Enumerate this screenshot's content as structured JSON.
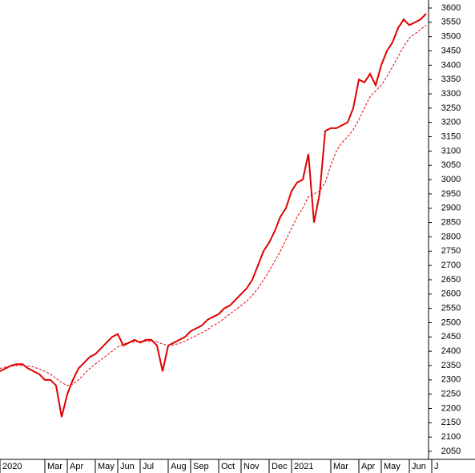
{
  "chart_data": {
    "type": "line",
    "categories": [
      "2020",
      null,
      null,
      null,
      null,
      null,
      null,
      null,
      "Mar",
      null,
      null,
      null,
      "Apr",
      null,
      null,
      null,
      null,
      "May",
      null,
      null,
      null,
      "Jun",
      null,
      null,
      null,
      "Jul",
      null,
      null,
      null,
      null,
      "Aug",
      null,
      null,
      null,
      "Sep",
      null,
      null,
      null,
      null,
      "Oct",
      null,
      null,
      null,
      "Nov",
      null,
      null,
      null,
      null,
      "Dec",
      null,
      null,
      null,
      "2021",
      null,
      null,
      null,
      null,
      null,
      null,
      "Mar",
      null,
      null,
      null,
      null,
      "Apr",
      null,
      null,
      null,
      "May",
      null,
      null,
      null,
      null,
      "Jun",
      null,
      null,
      null,
      "J"
    ],
    "series": [
      {
        "color": "#e00000",
        "style": "solid",
        "values": [
          2330,
          2340,
          2350,
          2355,
          2355,
          2340,
          2330,
          2320,
          2300,
          2300,
          2280,
          2170,
          2250,
          2300,
          2340,
          2360,
          2380,
          2390,
          2410,
          2430,
          2450,
          2460,
          2420,
          2430,
          2440,
          2430,
          2440,
          2440,
          2420,
          2330,
          2420,
          2430,
          2440,
          2450,
          2470,
          2480,
          2490,
          2510,
          2520,
          2530,
          2550,
          2560,
          2580,
          2600,
          2620,
          2650,
          2700,
          2750,
          2780,
          2820,
          2870,
          2900,
          2960,
          2990,
          3000,
          3090,
          2850,
          2950,
          3170,
          3180,
          3180,
          3190,
          3200,
          3250,
          3350,
          3340,
          3370,
          3330,
          3400,
          3450,
          3480,
          3530,
          3560,
          3540,
          3550,
          3560,
          3580,
          null
        ]
      },
      {
        "color": "#e00000",
        "style": "dashed",
        "values": [
          2340,
          2345,
          2348,
          2350,
          2350,
          2348,
          2345,
          2338,
          2330,
          2320,
          2305,
          2290,
          2280,
          2285,
          2300,
          2320,
          2340,
          2355,
          2370,
          2385,
          2400,
          2415,
          2425,
          2430,
          2433,
          2435,
          2435,
          2435,
          2433,
          2425,
          2420,
          2422,
          2428,
          2435,
          2445,
          2455,
          2465,
          2475,
          2490,
          2500,
          2515,
          2530,
          2545,
          2560,
          2575,
          2595,
          2620,
          2650,
          2680,
          2715,
          2750,
          2790,
          2830,
          2870,
          2900,
          2940,
          2950,
          2960,
          2990,
          3050,
          3100,
          3130,
          3150,
          3175,
          3210,
          3250,
          3290,
          3310,
          3330,
          3360,
          3395,
          3430,
          3465,
          3495,
          3510,
          3525,
          3540,
          null
        ]
      }
    ],
    "ylim": [
      2022,
      3628
    ],
    "yticks": [
      2050,
      2100,
      2150,
      2200,
      2250,
      2300,
      2350,
      2400,
      2450,
      2500,
      2550,
      2600,
      2650,
      2700,
      2750,
      2800,
      2850,
      2900,
      2950,
      3000,
      3050,
      3100,
      3150,
      3200,
      3250,
      3300,
      3350,
      3400,
      3450,
      3500,
      3550,
      3600
    ]
  }
}
